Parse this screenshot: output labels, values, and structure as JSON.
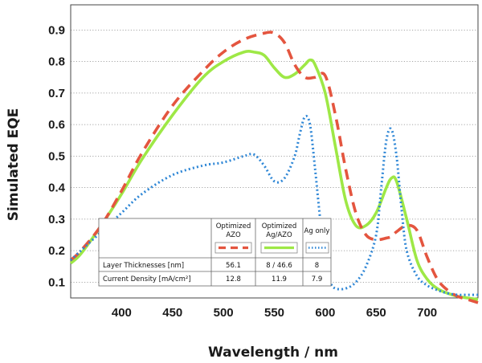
{
  "chart_data": {
    "type": "line",
    "xlabel": "Wavelength / nm",
    "ylabel": "Simulated EQE",
    "xlim": [
      350,
      750
    ],
    "ylim": [
      0.05,
      0.98
    ],
    "x_ticks": [
      400,
      450,
      500,
      550,
      600,
      650,
      700
    ],
    "y_ticks": [
      0.1,
      0.2,
      0.3,
      0.4,
      0.5,
      0.6,
      0.7,
      0.8,
      0.9
    ],
    "grid": "horizontal dotted",
    "series": [
      {
        "name": "Optimized AZO",
        "color": "#e4553f",
        "style": "dashed",
        "x": [
          350,
          360,
          380,
          400,
          420,
          450,
          480,
          500,
          520,
          540,
          550,
          560,
          570,
          580,
          590,
          600,
          610,
          620,
          630,
          640,
          650,
          660,
          665,
          670,
          680,
          690,
          700,
          710,
          720,
          730,
          740,
          750
        ],
        "y": [
          0.17,
          0.2,
          0.28,
          0.39,
          0.51,
          0.66,
          0.77,
          0.83,
          0.87,
          0.89,
          0.89,
          0.86,
          0.79,
          0.75,
          0.75,
          0.755,
          0.63,
          0.46,
          0.32,
          0.25,
          0.235,
          0.24,
          0.245,
          0.26,
          0.28,
          0.265,
          0.18,
          0.11,
          0.075,
          0.055,
          0.045,
          0.035
        ]
      },
      {
        "name": "Optimized Ag/AZO",
        "color": "#9ee846",
        "style": "solid",
        "x": [
          350,
          360,
          380,
          400,
          420,
          450,
          480,
          500,
          520,
          530,
          540,
          550,
          560,
          570,
          580,
          585,
          590,
          600,
          610,
          620,
          630,
          640,
          650,
          660,
          665,
          670,
          680,
          690,
          700,
          710,
          720,
          730,
          740,
          750
        ],
        "y": [
          0.16,
          0.19,
          0.28,
          0.38,
          0.49,
          0.63,
          0.75,
          0.8,
          0.83,
          0.83,
          0.82,
          0.78,
          0.75,
          0.76,
          0.79,
          0.805,
          0.79,
          0.7,
          0.53,
          0.36,
          0.28,
          0.28,
          0.32,
          0.4,
          0.43,
          0.42,
          0.3,
          0.17,
          0.11,
          0.08,
          0.065,
          0.055,
          0.05,
          0.045
        ]
      },
      {
        "name": "Ag only",
        "color": "#2f87d6",
        "style": "dotted",
        "x": [
          350,
          360,
          380,
          400,
          420,
          450,
          480,
          500,
          520,
          530,
          540,
          550,
          560,
          570,
          575,
          580,
          585,
          590,
          595,
          600,
          605,
          610,
          620,
          630,
          640,
          650,
          655,
          660,
          665,
          670,
          675,
          680,
          690,
          700,
          710,
          720,
          730,
          740,
          750
        ],
        "y": [
          0.17,
          0.2,
          0.26,
          0.32,
          0.38,
          0.44,
          0.47,
          0.48,
          0.5,
          0.505,
          0.47,
          0.42,
          0.43,
          0.5,
          0.57,
          0.625,
          0.6,
          0.46,
          0.3,
          0.17,
          0.1,
          0.08,
          0.08,
          0.1,
          0.15,
          0.25,
          0.4,
          0.55,
          0.585,
          0.5,
          0.33,
          0.2,
          0.12,
          0.09,
          0.075,
          0.065,
          0.06,
          0.06,
          0.06
        ]
      }
    ],
    "legend_table": {
      "headers": [
        "",
        "Optimized AZO",
        "Optimized Ag/AZO",
        "Ag only"
      ],
      "rows": [
        {
          "label": "Layer Thicknesses [nm]",
          "values": [
            "56.1",
            "8 / 46.6",
            "8"
          ]
        },
        {
          "label": "Current Density [mA/cm²]",
          "values": [
            "12.8",
            "11.9",
            "7.9"
          ]
        }
      ]
    }
  }
}
